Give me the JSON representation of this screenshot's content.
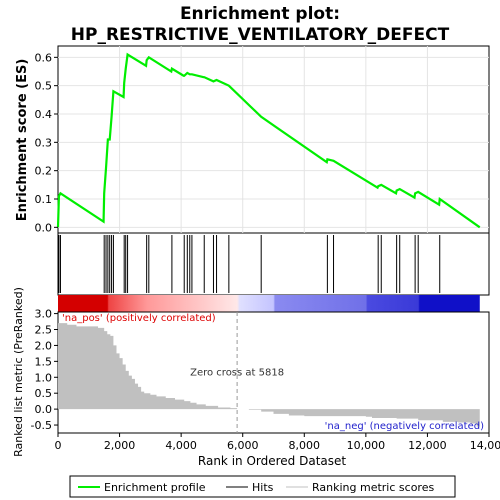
{
  "chart_data": {
    "type": "line",
    "title": "Enrichment plot:",
    "subtitle": "HP_RESTRICTIVE_VENTILATORY_DEFECT",
    "xlabel": "Rank in Ordered Dataset",
    "ylabel_top": "Enrichment score (ES)",
    "ylabel_bottom": "Ranked list metric (PreRanked)",
    "xlim": [
      0,
      14000
    ],
    "x_ticks": [
      0,
      2000,
      4000,
      6000,
      8000,
      10000,
      12000,
      14000
    ],
    "x_tick_labels": [
      "0",
      "2,000",
      "4,000",
      "6,000",
      "8,000",
      "10,000",
      "12,000",
      "14,000"
    ],
    "es_ylim": [
      -0.02,
      0.64
    ],
    "es_ticks": [
      0.0,
      0.1,
      0.2,
      0.3,
      0.4,
      0.5,
      0.6
    ],
    "es_tick_labels": [
      "0.0",
      "0.1",
      "0.2",
      "0.3",
      "0.4",
      "0.5",
      "0.6"
    ],
    "metric_ylim": [
      -0.75,
      3.05
    ],
    "metric_ticks": [
      -0.5,
      0.0,
      0.5,
      1.0,
      1.5,
      2.0,
      2.5,
      3.0
    ],
    "metric_tick_labels": [
      "-0.5",
      "0.0",
      "0.5",
      "1.0",
      "1.5",
      "2.0",
      "2.5",
      "3.0"
    ],
    "hits": [
      30,
      80,
      1500,
      1560,
      1620,
      1680,
      1740,
      1800,
      2150,
      2200,
      2260,
      2880,
      2950,
      3700,
      4100,
      4200,
      4280,
      4350,
      4750,
      5050,
      5150,
      5550,
      6600,
      8750,
      8950,
      10400,
      10500,
      11000,
      11100,
      11600,
      11700,
      12400
    ],
    "es_series": {
      "name": "Enrichment profile",
      "x": [
        0,
        30,
        80,
        1480,
        1500,
        1560,
        1620,
        1680,
        1740,
        1800,
        2130,
        2150,
        2200,
        2260,
        2860,
        2880,
        2950,
        3680,
        3700,
        4080,
        4100,
        4200,
        4280,
        4350,
        4730,
        4750,
        5050,
        5150,
        5550,
        6600,
        8730,
        8750,
        8950,
        10380,
        10400,
        10500,
        10980,
        11000,
        11100,
        11580,
        11600,
        11700,
        12380,
        12400,
        13700
      ],
      "y": [
        0.0,
        0.11,
        0.12,
        0.02,
        0.12,
        0.21,
        0.31,
        0.31,
        0.39,
        0.48,
        0.46,
        0.51,
        0.56,
        0.61,
        0.57,
        0.59,
        0.6,
        0.55,
        0.56,
        0.535,
        0.535,
        0.545,
        0.54,
        0.54,
        0.53,
        0.53,
        0.515,
        0.52,
        0.5,
        0.39,
        0.23,
        0.24,
        0.235,
        0.14,
        0.145,
        0.15,
        0.12,
        0.13,
        0.135,
        0.105,
        0.12,
        0.125,
        0.08,
        0.1,
        0.0
      ]
    },
    "metric_series": {
      "name": "Ranking metric scores",
      "x": [
        0,
        300,
        600,
        1000,
        1300,
        1500,
        1600,
        1700,
        1800,
        1900,
        2000,
        2100,
        2200,
        2300,
        2400,
        2500,
        2600,
        2700,
        2800,
        3000,
        3200,
        3500,
        3800,
        4100,
        4300,
        4500,
        4800,
        5200,
        5600,
        5818,
        6200,
        6600,
        7000,
        7500,
        8000,
        9000,
        10000,
        10200,
        11000,
        11700,
        12500,
        13000,
        13400,
        13600,
        13700
      ],
      "y": [
        2.7,
        2.65,
        2.6,
        2.6,
        2.55,
        2.45,
        2.35,
        2.3,
        2.0,
        1.75,
        1.6,
        1.4,
        1.2,
        1.05,
        0.95,
        0.8,
        0.7,
        0.55,
        0.5,
        0.45,
        0.4,
        0.35,
        0.3,
        0.25,
        0.2,
        0.15,
        0.1,
        0.05,
        0.03,
        0.0,
        -0.02,
        -0.08,
        -0.15,
        -0.2,
        -0.22,
        -0.22,
        -0.24,
        -0.28,
        -0.3,
        -0.35,
        -0.4,
        -0.42,
        -0.45,
        -0.55,
        -0.6
      ]
    },
    "gradient_stops": [
      {
        "x": 0,
        "color": "#d40000"
      },
      {
        "x": 1600,
        "color": "#d40000"
      },
      {
        "x": 1650,
        "color": "#ee4444"
      },
      {
        "x": 2900,
        "color": "#ff9999"
      },
      {
        "x": 5818,
        "color": "#ffe8e8"
      },
      {
        "x": 5900,
        "color": "#e0e0ff"
      },
      {
        "x": 7000,
        "color": "#c4c4ff"
      },
      {
        "x": 7050,
        "color": "#8a8af0"
      },
      {
        "x": 10000,
        "color": "#7070e8"
      },
      {
        "x": 10050,
        "color": "#4a4ae0"
      },
      {
        "x": 11700,
        "color": "#3a3ad8"
      },
      {
        "x": 11750,
        "color": "#1010c8"
      },
      {
        "x": 13700,
        "color": "#1010c8"
      }
    ],
    "zero_cross": 5818,
    "zero_cross_label": "Zero cross at 5818",
    "na_pos_label": "'na_pos' (positively correlated)",
    "na_neg_label": "'na_neg' (negatively correlated)",
    "legend": [
      "Enrichment profile",
      "Hits",
      "Ranking metric scores"
    ],
    "legend_placement": "bottom",
    "colors": {
      "es_line": "#00ee00",
      "hits": "#000000",
      "metric_fill": "#c0c0c0",
      "na_pos": "#dd0000",
      "na_neg": "#2222cc"
    }
  }
}
